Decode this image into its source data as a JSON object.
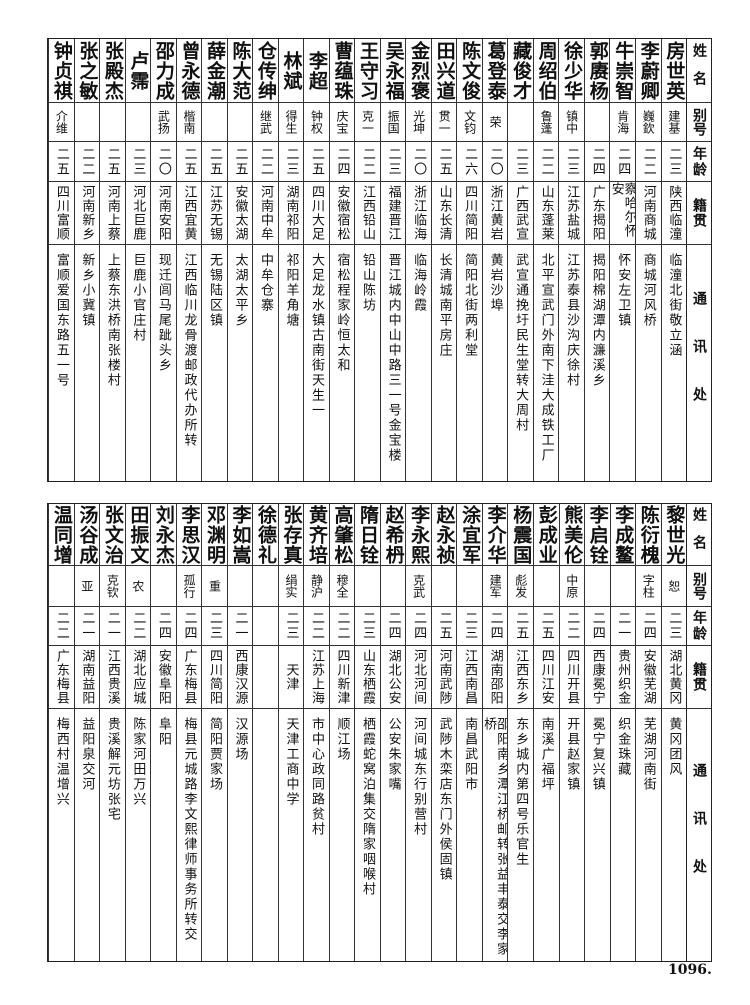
{
  "headers": {
    "name": "姓名",
    "alias": "别号",
    "age": "年龄",
    "origin": "籍贯",
    "address": "通讯处"
  },
  "tables": [
    {
      "rows": [
        {
          "name": "房世英",
          "alias": "建基",
          "age": "二三",
          "origin": "陕西临潼",
          "address": "临潼北街敬立涵"
        },
        {
          "name": "李蔚卿",
          "alias": "巍欽",
          "age": "二二",
          "origin": "河南商城",
          "address": "商城河风桥"
        },
        {
          "name": "牛崇智",
          "alias": "肯海",
          "age": "二四",
          "origin": "察哈尔怀安",
          "address": "怀安左卫镇"
        },
        {
          "name": "郭赓杨",
          "alias": "",
          "age": "二四",
          "origin": "广东揭阳",
          "address": "揭阳棉湖潭内濂溪乡"
        },
        {
          "name": "徐少华",
          "alias": "镇中",
          "age": "二三",
          "origin": "江苏盐城",
          "address": "江苏泰县沙沟庆徐村"
        },
        {
          "name": "周绍伯",
          "alias": "鲁蓬",
          "age": "二二",
          "origin": "山东蓬莱",
          "address": "北平宣武门外南下洼大成铁工厂"
        },
        {
          "name": "藏俊才",
          "alias": "",
          "age": "二三",
          "origin": "广西武宣",
          "address": "武宣通挽圩民生堂转大周村"
        },
        {
          "name": "葛登泰",
          "alias": "荣",
          "age": "二〇",
          "origin": "浙江黄岩",
          "address": "黄岩沙埠"
        },
        {
          "name": "陈文俊",
          "alias": "文钧",
          "age": "二六",
          "origin": "四川简阳",
          "address": "简阳北街两利堂"
        },
        {
          "name": "田兴道",
          "alias": "贯一",
          "age": "二五",
          "origin": "山东长清",
          "address": "长清城南平房庄"
        },
        {
          "name": "金烈褒",
          "alias": "光坤",
          "age": "二〇",
          "origin": "浙江临海",
          "address": "临海岭霞"
        },
        {
          "name": "吴永福",
          "alias": "振国",
          "age": "二三",
          "origin": "福建晋江",
          "address": "晋江城内中山中路三一号金宝楼"
        },
        {
          "name": "王守习",
          "alias": "克一",
          "age": "二二",
          "origin": "江西铅山",
          "address": "铅山陈坊"
        },
        {
          "name": "曹蕴珠",
          "alias": "庆宝",
          "age": "二四",
          "origin": "安徽宿松",
          "address": "宿松程家岭恒太和"
        },
        {
          "name": "李超",
          "alias": "钟权",
          "age": "二五",
          "origin": "四川大足",
          "address": "大足龙水镇古南街天生一"
        },
        {
          "name": "林斌",
          "alias": "得生",
          "age": "二三",
          "origin": "湖南祁阳",
          "address": "祁阳羊角塘"
        },
        {
          "name": "仓传绅",
          "alias": "继武",
          "age": "二二",
          "origin": "河南中牟",
          "address": "中牟仓寨"
        },
        {
          "name": "陈大范",
          "alias": "",
          "age": "二五",
          "origin": "安徽太湖",
          "address": "太湖太平乡"
        },
        {
          "name": "薛金潮",
          "alias": "",
          "age": "二五",
          "origin": "江苏无锡",
          "address": "无锡陆区镇"
        },
        {
          "name": "曾永德",
          "alias": "楷南",
          "age": "二五",
          "origin": "江西宜黄",
          "address": "江西临川龙骨渡邮政代办所转"
        },
        {
          "name": "邵力成",
          "alias": "武扬",
          "age": "二〇",
          "origin": "河南安阳",
          "address": "现迁闾马尾跐头乡"
        },
        {
          "name": "卢霈",
          "alias": "",
          "age": "二三",
          "origin": "河北巨鹿",
          "address": "巨鹿小官庄村"
        },
        {
          "name": "张殿杰",
          "alias": "",
          "age": "二五",
          "origin": "河南上蔡",
          "address": "上蔡东洪桥南张楼村"
        },
        {
          "name": "张之敏",
          "alias": "",
          "age": "二二",
          "origin": "河南新乡",
          "address": "新乡小冀镇"
        },
        {
          "name": "钟贞祺",
          "alias": "介维",
          "age": "二五",
          "origin": "四川富顺",
          "address": "富顺爱国东路五一号"
        }
      ]
    },
    {
      "rows": [
        {
          "name": "黎世光",
          "alias": "恕",
          "age": "二三",
          "origin": "湖北黄冈",
          "address": "黄冈团风"
        },
        {
          "name": "陈衍槐",
          "alias": "字柱",
          "age": "二四",
          "origin": "安徽芜湖",
          "address": "芜湖河南街"
        },
        {
          "name": "李成鳌",
          "alias": "",
          "age": "二一",
          "origin": "贵州织金",
          "address": "织金珠藏"
        },
        {
          "name": "李启铨",
          "alias": "",
          "age": "二四",
          "origin": "西康冕宁",
          "address": "冕宁复兴镇"
        },
        {
          "name": "熊美伦",
          "alias": "中原",
          "age": "二二",
          "origin": "四川开县",
          "address": "开县赵家镇"
        },
        {
          "name": "彭成业",
          "alias": "",
          "age": "二五",
          "origin": "四川江安",
          "address": "南溪广福坪"
        },
        {
          "name": "杨震国",
          "alias": "彪发",
          "age": "二五",
          "origin": "江西东乡",
          "address": "东乡城内第四号乐官生"
        },
        {
          "name": "李介华",
          "alias": "建军",
          "age": "二四",
          "origin": "湖南邵阳",
          "address": "邵阳南乡潭江桥邮转张益丰泰交李家桥"
        },
        {
          "name": "涂宜军",
          "alias": "",
          "age": "二三",
          "origin": "江西南昌",
          "address": "南昌武阳市"
        },
        {
          "name": "赵永祯",
          "alias": "",
          "age": "二五",
          "origin": "河南武陟",
          "address": "武陟木栾店东门外侯固镇"
        },
        {
          "name": "李永熙",
          "alias": "克武",
          "age": "二四",
          "origin": "河北河间",
          "address": "河间城东行别营村"
        },
        {
          "name": "赵希枬",
          "alias": "",
          "age": "二四",
          "origin": "湖北公安",
          "address": "公安朱家嘴"
        },
        {
          "name": "隋日铨",
          "alias": "",
          "age": "二三",
          "origin": "山东栖霞",
          "address": "栖霞蛇窝泊集交隋家咽喉村"
        },
        {
          "name": "高肇松",
          "alias": "穆全",
          "age": "二二",
          "origin": "四川新津",
          "address": "顺江场"
        },
        {
          "name": "黄齐培",
          "alias": "静沪",
          "age": "二二",
          "origin": "江苏上海",
          "address": "市中心政同路贫村"
        },
        {
          "name": "张存真",
          "alias": "绢实",
          "age": "二三",
          "origin": "天津",
          "address": "天津工商中学"
        },
        {
          "name": "徐德礼",
          "alias": "",
          "age": "",
          "origin": "",
          "address": ""
        },
        {
          "name": "李如嵩",
          "alias": "",
          "age": "二一",
          "origin": "西康汉源",
          "address": "汉源场"
        },
        {
          "name": "邓渊明",
          "alias": "重",
          "age": "二三",
          "origin": "四川简阳",
          "address": "简阳贾家场"
        },
        {
          "name": "李思汉",
          "alias": "孤行",
          "age": "二四",
          "origin": "广东梅县",
          "address": "梅县元城路李文熙律师事务所转交"
        },
        {
          "name": "刘永杰",
          "alias": "",
          "age": "二四",
          "origin": "安徽阜阳",
          "address": "阜阳"
        },
        {
          "name": "田振文",
          "alias": "农",
          "age": "二二",
          "origin": "湖北应城",
          "address": "陈家河田万兴"
        },
        {
          "name": "张文治",
          "alias": "克钦",
          "age": "二一",
          "origin": "江西贵溪",
          "address": "贵溪解元坊张宅"
        },
        {
          "name": "汤谷成",
          "alias": "亚",
          "age": "二一",
          "origin": "湖南益阳",
          "address": "益阳泉交河"
        },
        {
          "name": "温同增",
          "alias": "",
          "age": "二二",
          "origin": "广东梅县",
          "address": "梅西村温增兴"
        }
      ]
    }
  ],
  "page_number": "1096."
}
